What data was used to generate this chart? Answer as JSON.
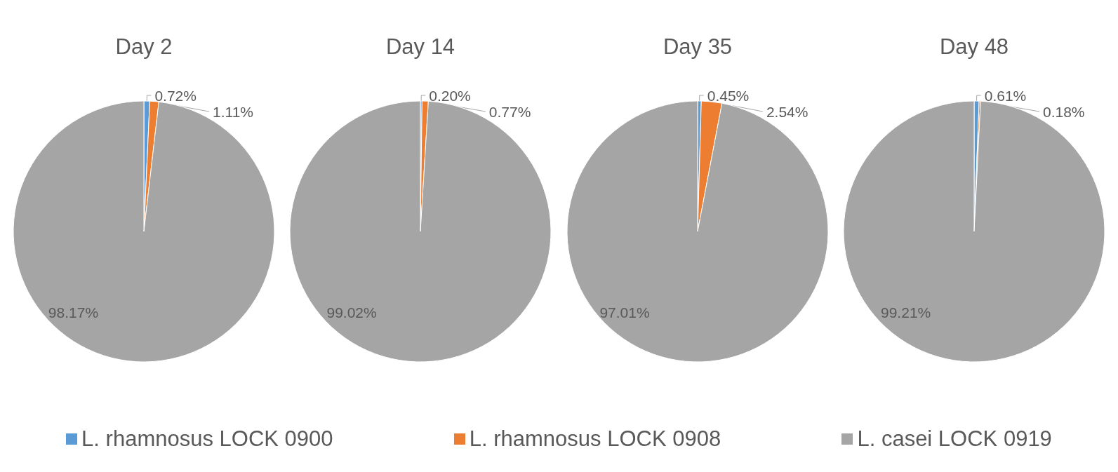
{
  "chart_data": [
    {
      "type": "pie",
      "title": "Day 2",
      "categories": [
        "L. rhamnosus LOCK 0900",
        "L. rhamnosus LOCK 0908",
        "L. casei LOCK 0919"
      ],
      "values": [
        0.72,
        1.11,
        98.17
      ],
      "value_labels": [
        "0.72%",
        "1.11%",
        "98.17%"
      ],
      "colors": [
        "#5b9bd5",
        "#ed7d31",
        "#a5a5a5"
      ],
      "legend": "bottom"
    },
    {
      "type": "pie",
      "title": "Day 14",
      "categories": [
        null,
        null,
        null
      ],
      "values": [
        0.2,
        0.77,
        99.02
      ],
      "value_labels": [
        "0.20%",
        "0.77%",
        "99.02%"
      ],
      "colors": [
        "#5b9bd5",
        "#ed7d31",
        "#a5a5a5"
      ]
    },
    {
      "type": "pie",
      "title": "Day 35",
      "categories": [
        null,
        null,
        null
      ],
      "values": [
        0.45,
        2.54,
        97.01
      ],
      "value_labels": [
        "0.45%",
        "2.54%",
        "97.01%"
      ],
      "colors": [
        "#5b9bd5",
        "#ed7d31",
        "#a5a5a5"
      ]
    },
    {
      "type": "pie",
      "title": "Day 48",
      "categories": [
        null,
        null,
        null
      ],
      "values": [
        0.61,
        0.18,
        99.21
      ],
      "value_labels": [
        "0.61%",
        "0.18%",
        "99.21%"
      ],
      "colors": [
        "#5b9bd5",
        "#ed7d31",
        "#a5a5a5"
      ]
    }
  ]
}
